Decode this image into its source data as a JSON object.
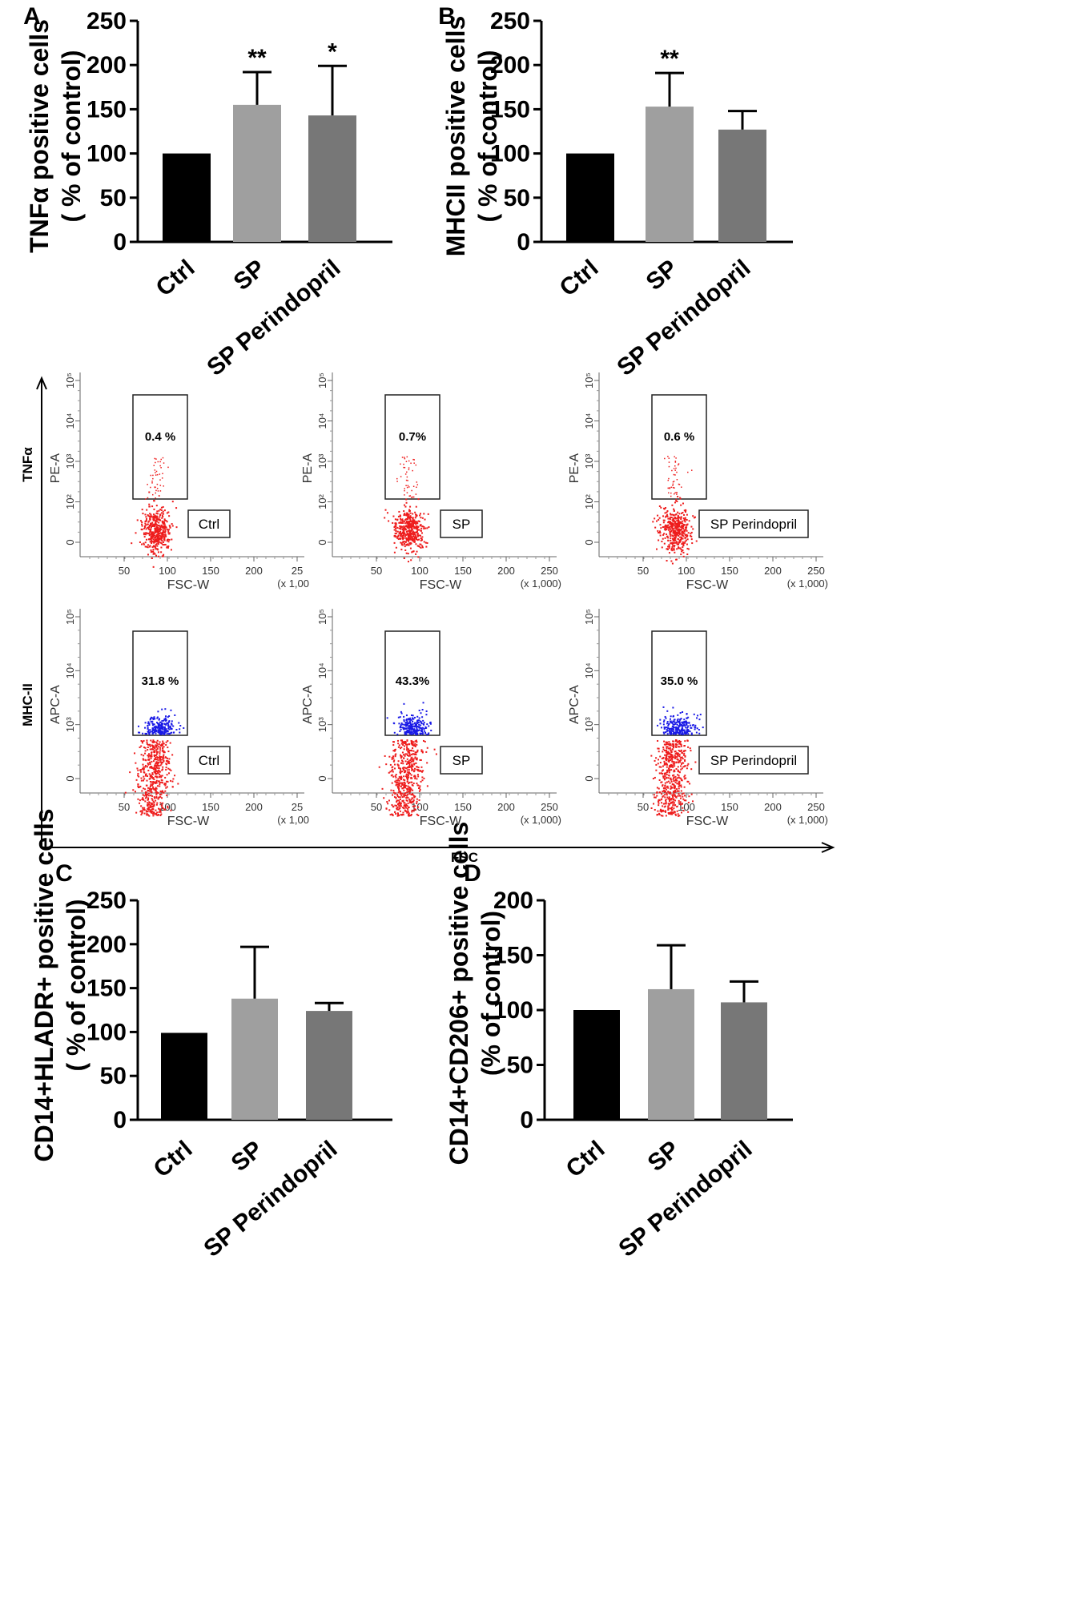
{
  "chart_data": [
    {
      "type": "bar",
      "panel": "A",
      "ylabel_lines": [
        "TNFα positive cells",
        "( % of control)"
      ],
      "categories": [
        "Ctrl",
        "SP",
        "SP Perindopril"
      ],
      "values": [
        100,
        155,
        143
      ],
      "errors": [
        0,
        37,
        56
      ],
      "significance": [
        "",
        "**",
        "*"
      ],
      "yticks": [
        "0",
        "50",
        "100",
        "150",
        "200",
        "250"
      ],
      "ylim": [
        0,
        250
      ],
      "colors": [
        "#000000",
        "#9f9f9f",
        "#777777"
      ]
    },
    {
      "type": "bar",
      "panel": "B",
      "ylabel_lines": [
        "MHCII positive cells",
        "( % of control)"
      ],
      "categories": [
        "Ctrl",
        "SP",
        "SP Perindopril"
      ],
      "values": [
        100,
        153,
        127
      ],
      "errors": [
        0,
        38,
        21
      ],
      "significance": [
        "",
        "**",
        ""
      ],
      "yticks": [
        "0",
        "50",
        "100",
        "150",
        "200",
        "250"
      ],
      "ylim": [
        0,
        250
      ],
      "colors": [
        "#000000",
        "#9f9f9f",
        "#777777"
      ]
    },
    {
      "type": "bar",
      "panel": "C",
      "ylabel_lines": [
        "CD14+HLADR+ positive cells",
        "( % of control)"
      ],
      "categories": [
        "Ctrl",
        "SP",
        "SP Perindopril"
      ],
      "values": [
        99,
        138,
        124
      ],
      "errors": [
        0,
        59,
        9
      ],
      "significance": [
        "",
        "",
        ""
      ],
      "yticks": [
        "0",
        "50",
        "100",
        "150",
        "200",
        "250"
      ],
      "ylim": [
        0,
        250
      ],
      "colors": [
        "#000000",
        "#9f9f9f",
        "#777777"
      ]
    },
    {
      "type": "bar",
      "panel": "D",
      "ylabel_lines": [
        "CD14+CD206+ positive cells",
        "(% of control)"
      ],
      "categories": [
        "Ctrl",
        "SP",
        "SP Perindopril"
      ],
      "values": [
        100,
        119,
        107
      ],
      "errors": [
        0,
        40,
        19
      ],
      "significance": [
        "",
        "",
        ""
      ],
      "yticks": [
        "0",
        "50",
        "100",
        "150",
        "200"
      ],
      "ylim": [
        0,
        200
      ],
      "colors": [
        "#000000",
        "#9f9f9f",
        "#777777"
      ]
    },
    {
      "type": "scatter",
      "panel": "flow cytometry",
      "row_labels": [
        "TNFα",
        "MHC-II"
      ],
      "axis_label_bottom": "FSC",
      "rows": [
        {
          "ylabel": "PE-A",
          "yticks": [
            "0",
            "10²",
            "10³",
            "10⁴",
            "10⁵"
          ],
          "plots": [
            {
              "sample": "Ctrl",
              "gate_percent": "0.4 %",
              "xlabel": "FSC-W",
              "xticks": [
                "50",
                "100",
                "150",
                "200",
                "25"
              ],
              "x_unit": "(x 1,00"
            },
            {
              "sample": "SP",
              "gate_percent": "0.7%",
              "xlabel": "FSC-W",
              "xticks": [
                "50",
                "100",
                "150",
                "200",
                "250"
              ],
              "x_unit": "(x 1,000)"
            },
            {
              "sample": "SP Perindopril",
              "gate_percent": "0.6 %",
              "xlabel": "FSC-W",
              "xticks": [
                "50",
                "100",
                "150",
                "200",
                "250"
              ],
              "x_unit": "(x 1,000)"
            }
          ]
        },
        {
          "ylabel": "APC-A",
          "yticks": [
            "0",
            "10³",
            "10⁴",
            "10⁵"
          ],
          "plots": [
            {
              "sample": "Ctrl",
              "gate_percent": "31.8 %",
              "xlabel": "FSC-W",
              "xticks": [
                "50",
                "100",
                "150",
                "200",
                "25"
              ],
              "x_unit": "(x 1,00"
            },
            {
              "sample": "SP",
              "gate_percent": "43.3%",
              "xlabel": "FSC-W",
              "xticks": [
                "50",
                "100",
                "150",
                "200",
                "250"
              ],
              "x_unit": "(x 1,000)"
            },
            {
              "sample": "SP Perindopril",
              "gate_percent": "35.0 %",
              "xlabel": "FSC-W",
              "xticks": [
                "50",
                "100",
                "150",
                "200",
                "250"
              ],
              "x_unit": "(x 1,000)"
            }
          ]
        }
      ],
      "colors": {
        "negative": "#ee1c1c",
        "positive": "#1a1ae6"
      }
    }
  ]
}
